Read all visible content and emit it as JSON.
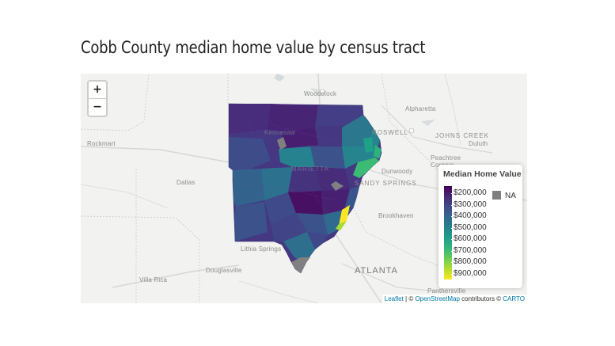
{
  "title": "Cobb County median home value by census tract",
  "map": {
    "zoom_in": "+",
    "zoom_out": "−",
    "places": {
      "woodstock": "Woodstock",
      "alpharetta": "Alpharetta",
      "roswell": "ROSWELL",
      "johns_creek": "JOHNS CREEK",
      "duluth": "Duluth",
      "peachtree_corners": "Peachtree Corners",
      "rockmart": "Rockmart",
      "dallas": "Dallas",
      "kennesaw": "Kennesaw",
      "marietta": "MARIETTA",
      "dunwoody": "Dunwoody",
      "sandy_springs": "SANDY SPRINGS",
      "brookhaven": "Brookhaven",
      "lithia_springs": "Lithia Springs",
      "douglasville": "Douglasville",
      "atlanta": "ATLANTA",
      "villa_rica": "Villa Rica",
      "panthersville": "Panthersville"
    },
    "legend": {
      "title": "Median Home Value",
      "labels": [
        "$200,000",
        "$300,000",
        "$400,000",
        "$500,000",
        "$600,000",
        "$700,000",
        "$800,000",
        "$900,000"
      ],
      "na_label": "NA",
      "palette": "viridis",
      "na_color": "#808080"
    },
    "attribution": {
      "leaflet": "Leaflet",
      "sep1": " | © ",
      "osm": "OpenStreetMap",
      "contrib": " contributors © ",
      "carto": "CARTO"
    }
  }
}
